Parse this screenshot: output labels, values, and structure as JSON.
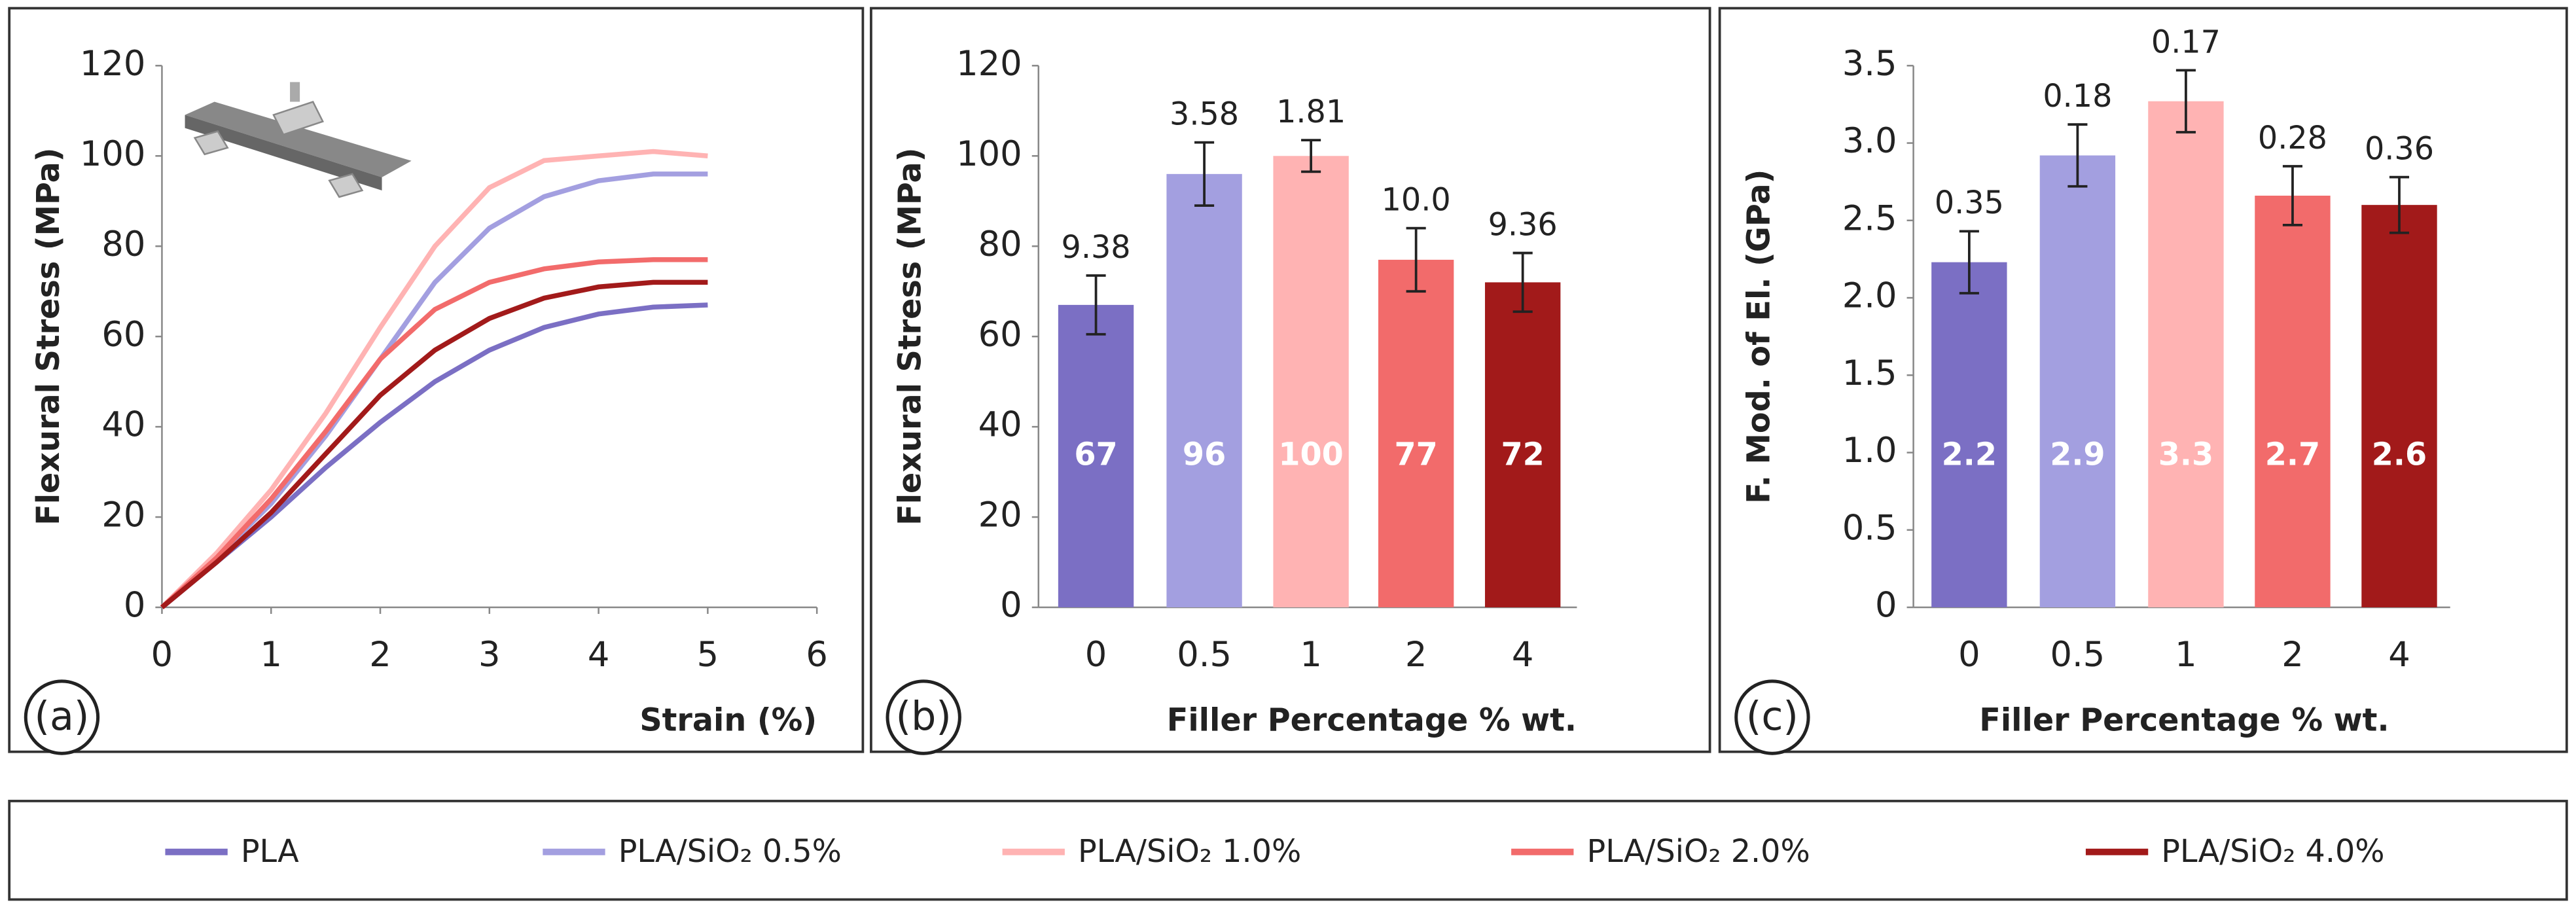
{
  "chart_data": [
    {
      "type": "line",
      "panel_label": "(a)",
      "x_label": "Strain (%)",
      "y_label": "Flexural Stress (MPa)",
      "x": [
        0,
        0.5,
        1,
        1.5,
        2,
        2.5,
        3,
        3.5,
        4,
        4.5,
        5
      ],
      "xlim": [
        0,
        6
      ],
      "xticks": [
        0,
        1,
        2,
        3,
        4,
        5,
        6
      ],
      "ylim": [
        0,
        120
      ],
      "yticks": [
        0,
        20,
        40,
        60,
        80,
        100,
        120
      ],
      "series": [
        {
          "name": "PLA",
          "color": "#7b6fc4",
          "values": [
            0,
            10,
            20,
            31,
            41,
            50,
            57,
            62,
            65,
            66.5,
            67
          ]
        },
        {
          "name": "PLA/SiO₂ 0.5%",
          "color": "#a39fe0",
          "values": [
            0,
            11,
            23,
            38,
            55,
            72,
            84,
            91,
            94.5,
            96,
            96
          ]
        },
        {
          "name": "PLA/SiO₂ 1.0%",
          "color": "#ffb3b3",
          "values": [
            0,
            12,
            26,
            43,
            62,
            80,
            93,
            99,
            100,
            101,
            100
          ]
        },
        {
          "name": "PLA/SiO₂ 2.0%",
          "color": "#f26b6b",
          "values": [
            0,
            11,
            24,
            39,
            55,
            66,
            72,
            75,
            76.5,
            77,
            77
          ]
        },
        {
          "name": "PLA/SiO₂ 4.0%",
          "color": "#a21a1a",
          "values": [
            0,
            10,
            21,
            34,
            47,
            57,
            64,
            68.5,
            71,
            72,
            72
          ]
        }
      ]
    },
    {
      "type": "bar",
      "panel_label": "(b)",
      "x_label": "Filler Percentage % wt.",
      "y_label": "Flexural Stress (MPa)",
      "categories": [
        "0",
        "0.5",
        "1",
        "2",
        "4"
      ],
      "values": [
        67,
        96,
        100,
        77,
        72
      ],
      "errors": [
        6.5,
        7,
        3.5,
        7,
        6.5
      ],
      "annotations": [
        "9.38",
        "3.58",
        "1.81",
        "10.0",
        "9.36"
      ],
      "colors": [
        "#7b6fc4",
        "#a39fe0",
        "#ffb3b3",
        "#f26b6b",
        "#a21a1a"
      ],
      "ylim": [
        0,
        120
      ],
      "yticks": [
        0,
        20,
        40,
        60,
        80,
        100,
        120
      ]
    },
    {
      "type": "bar",
      "panel_label": "(c)",
      "x_label": "Filler Percentage % wt.",
      "y_label": "F. Mod. of El. (GPa)",
      "categories": [
        "0",
        "0.5",
        "1",
        "2",
        "4"
      ],
      "values": [
        2.23,
        2.92,
        3.27,
        2.66,
        2.6
      ],
      "value_labels": [
        "2.2",
        "2.9",
        "3.3",
        "2.7",
        "2.6"
      ],
      "errors": [
        0.2,
        0.2,
        0.2,
        0.19,
        0.18
      ],
      "annotations": [
        "0.35",
        "0.18",
        "0.17",
        "0.28",
        "0.36"
      ],
      "colors": [
        "#7b6fc4",
        "#a39fe0",
        "#ffb3b3",
        "#f26b6b",
        "#a21a1a"
      ],
      "ylim": [
        0,
        3.5
      ],
      "yticks": [
        0,
        0.5,
        {
          "value": 1,
          "label": "1.0"
        },
        1.5,
        {
          "value": 2,
          "label": "2.0"
        },
        2.5,
        {
          "value": 3,
          "label": "3.0"
        },
        3.5
      ]
    }
  ]
}
